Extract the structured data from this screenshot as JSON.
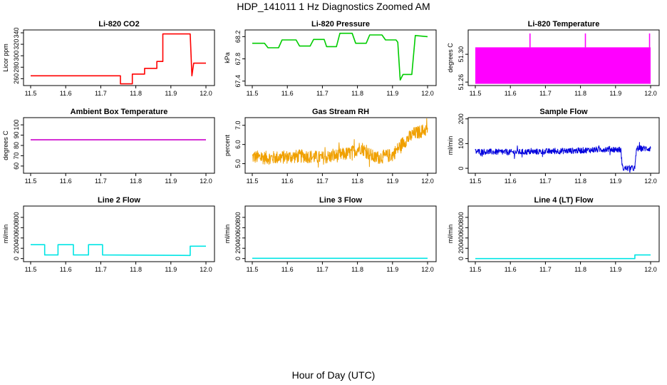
{
  "title": "HDP_141011  1 Hz Diagnostics Zoomed AM",
  "xlabel": "Hour of Day (UTC)",
  "chart_data": [
    {
      "type": "line",
      "title": "Li-820 CO2",
      "ylabel": "Licor ppm",
      "xlim": [
        11.5,
        12.0
      ],
      "xticks": [
        "11.5",
        "11.6",
        "11.7",
        "11.8",
        "11.9",
        "12.0"
      ],
      "ylim": [
        248,
        345
      ],
      "yticks": [
        260,
        280,
        300,
        320,
        340
      ],
      "color": "#ff0000",
      "x": [
        11.5,
        11.756,
        11.756,
        11.79,
        11.79,
        11.825,
        11.825,
        11.86,
        11.86,
        11.877,
        11.877,
        11.955,
        11.96,
        11.965,
        11.965,
        12.0
      ],
      "y": [
        265,
        265,
        251,
        251,
        268,
        268,
        278,
        278,
        290,
        290,
        338,
        338,
        265,
        287,
        287,
        287
      ]
    },
    {
      "type": "line",
      "title": "Li-820 Pressure",
      "ylabel": "kPa",
      "xlim": [
        11.5,
        12.0
      ],
      "xticks": [
        "11.5",
        "11.6",
        "11.7",
        "11.8",
        "11.9",
        "12.0"
      ],
      "ylim": [
        67.32,
        68.32
      ],
      "yticks": [
        "67.4",
        "67.8",
        "68.2"
      ],
      "color": "#00cc00",
      "x": [
        11.5,
        11.535,
        11.545,
        11.575,
        11.585,
        11.625,
        11.635,
        11.665,
        11.675,
        11.705,
        11.712,
        11.74,
        11.75,
        11.785,
        11.795,
        11.825,
        11.835,
        11.87,
        11.88,
        11.91,
        11.915,
        11.922,
        11.93,
        11.955,
        11.965,
        12.0
      ],
      "y": [
        68.08,
        68.08,
        68.0,
        68.0,
        68.14,
        68.14,
        68.03,
        68.03,
        68.15,
        68.15,
        68.02,
        68.02,
        68.26,
        68.26,
        68.08,
        68.08,
        68.23,
        68.23,
        68.14,
        68.14,
        68.1,
        67.42,
        67.52,
        67.52,
        68.22,
        68.2
      ]
    },
    {
      "type": "line",
      "title": "Li-820 Temperature",
      "ylabel": "degrees C",
      "xlim": [
        11.5,
        12.0
      ],
      "xticks": [
        "11.5",
        "11.6",
        "11.7",
        "11.8",
        "11.9",
        "12.0"
      ],
      "ylim": [
        51.255,
        51.335
      ],
      "yticks": [
        "51.26",
        "51.30"
      ],
      "color": "#ff00ff",
      "band_low": 51.2575,
      "band_high": 51.31,
      "spike_x": [
        11.656,
        11.814,
        11.997
      ],
      "spike_top": 51.33
    },
    {
      "type": "line",
      "title": "Ambient Box Temperature",
      "ylabel": "degrees C",
      "xlim": [
        11.5,
        12.0
      ],
      "xticks": [
        "11.5",
        "11.6",
        "11.7",
        "11.8",
        "11.9",
        "12.0"
      ],
      "ylim": [
        53,
        107
      ],
      "yticks": [
        60,
        70,
        80,
        90,
        100
      ],
      "color": "#cc00cc",
      "x": [
        11.5,
        12.0
      ],
      "y": [
        85.5,
        85.5
      ]
    },
    {
      "type": "line",
      "title": "Gas Stream RH",
      "ylabel": "percent",
      "xlim": [
        11.5,
        12.0
      ],
      "xticks": [
        "11.5",
        "11.6",
        "11.7",
        "11.8",
        "11.9",
        "12.0"
      ],
      "ylim": [
        4.5,
        7.4
      ],
      "yticks": [
        "5.0",
        "6.0",
        "7.0"
      ],
      "color": "#f0a000",
      "x": [
        11.5,
        11.55,
        11.6,
        11.65,
        11.7,
        11.75,
        11.78,
        11.81,
        11.83,
        11.85,
        11.9,
        11.93,
        11.96,
        12.0
      ],
      "y": [
        5.35,
        5.3,
        5.35,
        5.4,
        5.3,
        5.45,
        5.55,
        5.85,
        5.55,
        5.3,
        5.45,
        6.1,
        6.55,
        6.8
      ],
      "noise": 0.35
    },
    {
      "type": "line",
      "title": "Sample Flow",
      "ylabel": "ml/min",
      "xlim": [
        11.5,
        12.0
      ],
      "xticks": [
        "11.5",
        "11.6",
        "11.7",
        "11.8",
        "11.9",
        "12.0"
      ],
      "ylim": [
        -20,
        205
      ],
      "yticks": [
        0,
        100,
        200
      ],
      "color": "#0000dd",
      "x": [
        11.5,
        11.6,
        11.7,
        11.8,
        11.88,
        11.915,
        11.92,
        11.955,
        11.96,
        12.0
      ],
      "y": [
        68,
        65,
        68,
        72,
        78,
        75,
        0,
        0,
        80,
        80
      ],
      "noise": 12
    },
    {
      "type": "line",
      "title": "Line 2 Flow",
      "ylabel": "ml/min",
      "xlim": [
        11.5,
        12.0
      ],
      "xticks": [
        "11.5",
        "11.6",
        "11.7",
        "11.8",
        "11.9",
        "12.0"
      ],
      "ylim": [
        -60,
        1020
      ],
      "yticks": [
        0,
        200,
        400,
        600,
        800
      ],
      "color": "#00e5e5",
      "x": [
        11.5,
        11.54,
        11.54,
        11.578,
        11.578,
        11.622,
        11.622,
        11.665,
        11.665,
        11.705,
        11.705,
        11.955,
        11.955,
        12.0
      ],
      "y": [
        270,
        270,
        70,
        70,
        270,
        270,
        70,
        70,
        270,
        270,
        70,
        60,
        240,
        240
      ]
    },
    {
      "type": "line",
      "title": "Line 3 Flow",
      "ylabel": "ml/min",
      "xlim": [
        11.5,
        12.0
      ],
      "xticks": [
        "11.5",
        "11.6",
        "11.7",
        "11.8",
        "11.9",
        "12.0"
      ],
      "ylim": [
        -60,
        1020
      ],
      "yticks": [
        0,
        200,
        400,
        600,
        800
      ],
      "color": "#00e5e5",
      "x": [
        11.5,
        12.0
      ],
      "y": [
        5,
        5
      ]
    },
    {
      "type": "line",
      "title": "Line 4 (LT) Flow",
      "ylabel": "ml/min",
      "xlim": [
        11.5,
        12.0
      ],
      "xticks": [
        "11.5",
        "11.6",
        "11.7",
        "11.8",
        "11.9",
        "12.0"
      ],
      "ylim": [
        -60,
        1020
      ],
      "yticks": [
        0,
        200,
        400,
        600,
        800
      ],
      "color": "#00e5e5",
      "x": [
        11.5,
        11.955,
        11.955,
        12.0
      ],
      "y": [
        0,
        0,
        70,
        70
      ]
    }
  ]
}
